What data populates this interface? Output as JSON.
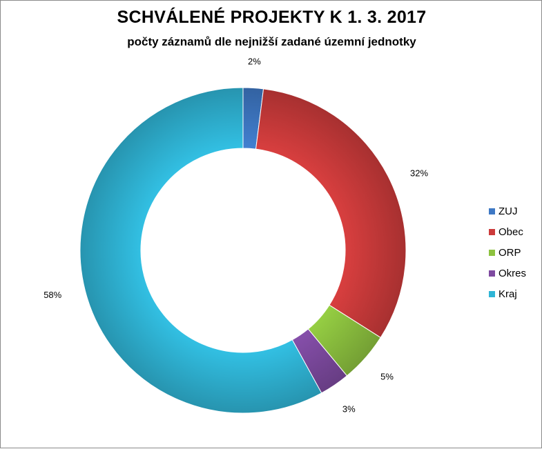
{
  "chart_data": {
    "type": "pie",
    "title": "SCHVÁLENÉ PROJEKTY K 1. 3. 2017",
    "subtitle": "počty záznamů  dle nejnižší zadané územní jednotky",
    "categories": [
      "ZUJ",
      "Obec",
      "ORP",
      "Okres",
      "Kraj"
    ],
    "values": [
      2,
      32,
      5,
      3,
      58
    ],
    "data_labels": [
      "2%",
      "32%",
      "5%",
      "3%",
      "58%"
    ],
    "colors": [
      "#3e78c4",
      "#cc3b3b",
      "#8dc23f",
      "#7e4aa0",
      "#2fb5d6"
    ],
    "legend_position": "right"
  }
}
